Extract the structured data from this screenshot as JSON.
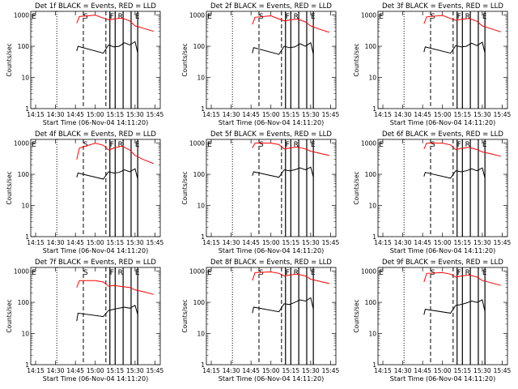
{
  "figure": {
    "background": "#ffffff",
    "colors": {
      "events": "#000000",
      "lld": "#ff0000",
      "axes": "#000000"
    }
  },
  "chart_data": [
    {
      "type": "line",
      "title": "Det 1f BLACK = Events, RED = LLD",
      "xlabel": "Start Time (06-Nov-04 14:11:20)",
      "ylabel": "Counts/sec",
      "xticks": [
        "14:15",
        "14:30",
        "14:45",
        "15:00",
        "15:15",
        "15:30",
        "15:45"
      ],
      "yticks": [
        "1",
        "10",
        "100",
        "1000"
      ],
      "ylim": [
        1,
        1000
      ],
      "yscale": "log",
      "markers": [
        "E",
        "S",
        "F",
        "R",
        "E"
      ],
      "series": [
        {
          "name": "Events",
          "color": "#000000",
          "x": [
            "14:46:00",
            "14:47:00",
            "15:06:00",
            "15:10:00",
            "15:14:00",
            "15:18:00",
            "15:22:00",
            "15:26:00",
            "15:30:00",
            "15:32:00"
          ],
          "y": [
            70,
            100,
            60,
            110,
            95,
            100,
            130,
            110,
            140,
            60
          ]
        },
        {
          "name": "LLD",
          "color": "#ff0000",
          "x": [
            "14:46:00",
            "14:48:00",
            "15:00:00",
            "15:06:00",
            "15:10:00",
            "15:14:00",
            "15:20:00",
            "15:26:00",
            "15:30:00",
            "15:36:00",
            "15:44:00"
          ],
          "y": [
            550,
            900,
            1000,
            800,
            700,
            750,
            800,
            650,
            450,
            380,
            300
          ]
        }
      ]
    },
    {
      "type": "line",
      "title": "Det 2f BLACK = Events, RED = LLD",
      "xlabel": "Start Time (06-Nov-04 14:11:20)",
      "ylabel": "Counts/sec",
      "xticks": [
        "14:15",
        "14:30",
        "14:45",
        "15:00",
        "15:15",
        "15:30",
        "15:45"
      ],
      "yticks": [
        "1",
        "10",
        "100",
        "1000"
      ],
      "ylim": [
        1,
        1000
      ],
      "yscale": "log",
      "markers": [
        "E",
        "S",
        "F",
        "R",
        "E"
      ],
      "series": [
        {
          "name": "Events",
          "color": "#000000",
          "x": [
            "14:46:00",
            "14:47:00",
            "15:06:00",
            "15:10:00",
            "15:14:00",
            "15:18:00",
            "15:22:00",
            "15:26:00",
            "15:30:00",
            "15:32:00"
          ],
          "y": [
            60,
            90,
            55,
            100,
            90,
            95,
            120,
            100,
            130,
            55
          ]
        },
        {
          "name": "LLD",
          "color": "#ff0000",
          "x": [
            "14:46:00",
            "14:48:00",
            "15:00:00",
            "15:06:00",
            "15:10:00",
            "15:14:00",
            "15:20:00",
            "15:26:00",
            "15:30:00",
            "15:36:00",
            "15:44:00"
          ],
          "y": [
            500,
            850,
            950,
            750,
            650,
            700,
            750,
            600,
            450,
            360,
            280
          ]
        }
      ]
    },
    {
      "type": "line",
      "title": "Det 3f BLACK = Events, RED = LLD",
      "xlabel": "Start Time (06-Nov-04 14:11:20)",
      "ylabel": "Counts/sec",
      "xticks": [
        "14:15",
        "14:30",
        "14:45",
        "15:00",
        "15:15",
        "15:30",
        "15:45"
      ],
      "yticks": [
        "1",
        "10",
        "100",
        "1000"
      ],
      "ylim": [
        1,
        1000
      ],
      "yscale": "log",
      "markers": [
        "E",
        "S",
        "F",
        "R",
        "E"
      ],
      "series": [
        {
          "name": "Events",
          "color": "#000000",
          "x": [
            "14:46:00",
            "14:47:00",
            "15:06:00",
            "15:10:00",
            "15:14:00",
            "15:18:00",
            "15:22:00",
            "15:26:00",
            "15:30:00",
            "15:32:00"
          ],
          "y": [
            65,
            95,
            60,
            105,
            95,
            100,
            125,
            105,
            135,
            60
          ]
        },
        {
          "name": "LLD",
          "color": "#ff0000",
          "x": [
            "14:46:00",
            "14:48:00",
            "15:00:00",
            "15:06:00",
            "15:10:00",
            "15:14:00",
            "15:20:00",
            "15:26:00",
            "15:30:00",
            "15:36:00",
            "15:44:00"
          ],
          "y": [
            520,
            880,
            980,
            780,
            680,
            730,
            780,
            630,
            450,
            370,
            290
          ]
        }
      ]
    },
    {
      "type": "line",
      "title": "Det 4f BLACK = Events, RED = LLD",
      "xlabel": "Start Time (06-Nov-04 14:11:20)",
      "ylabel": "Counts/sec",
      "xticks": [
        "14:15",
        "14:30",
        "14:45",
        "15:00",
        "15:15",
        "15:30",
        "15:45"
      ],
      "yticks": [
        "1",
        "10",
        "100",
        "1000"
      ],
      "ylim": [
        1,
        1000
      ],
      "yscale": "log",
      "markers": [
        "E",
        "S",
        "F",
        "R",
        "E"
      ],
      "series": [
        {
          "name": "Events",
          "color": "#000000",
          "x": [
            "14:46:00",
            "14:47:00",
            "15:06:00",
            "15:10:00",
            "15:14:00",
            "15:18:00",
            "15:22:00",
            "15:26:00",
            "15:30:00",
            "15:32:00"
          ],
          "y": [
            80,
            110,
            70,
            120,
            110,
            115,
            140,
            120,
            150,
            70
          ]
        },
        {
          "name": "LLD",
          "color": "#ff0000",
          "x": [
            "14:46:00",
            "14:48:00",
            "15:00:00",
            "15:06:00",
            "15:10:00",
            "15:14:00",
            "15:20:00",
            "15:26:00",
            "15:30:00",
            "15:36:00",
            "15:44:00"
          ],
          "y": [
            300,
            700,
            1000,
            850,
            600,
            700,
            800,
            600,
            400,
            300,
            220
          ]
        }
      ]
    },
    {
      "type": "line",
      "title": "Det 5f BLACK = Events, RED = LLD",
      "xlabel": "Start Time (06-Nov-04 14:11:20)",
      "ylabel": "Counts/sec",
      "xticks": [
        "14:15",
        "14:30",
        "14:45",
        "15:00",
        "15:15",
        "15:30",
        "15:45"
      ],
      "yticks": [
        "1",
        "10",
        "100",
        "1000"
      ],
      "ylim": [
        1,
        1000
      ],
      "yscale": "log",
      "markers": [
        "E",
        "S",
        "F",
        "R",
        "E"
      ],
      "series": [
        {
          "name": "Events",
          "color": "#000000",
          "x": [
            "14:46:00",
            "14:47:00",
            "15:06:00",
            "15:10:00",
            "15:14:00",
            "15:18:00",
            "15:22:00",
            "15:26:00",
            "15:30:00",
            "15:32:00"
          ],
          "y": [
            90,
            120,
            80,
            140,
            130,
            140,
            160,
            140,
            170,
            80
          ]
        },
        {
          "name": "LLD",
          "color": "#ff0000",
          "x": [
            "14:46:00",
            "14:48:00",
            "15:00:00",
            "15:06:00",
            "15:10:00",
            "15:14:00",
            "15:20:00",
            "15:26:00",
            "15:30:00",
            "15:36:00",
            "15:44:00"
          ],
          "y": [
            700,
            1000,
            1000,
            900,
            650,
            700,
            750,
            650,
            550,
            480,
            400
          ]
        }
      ]
    },
    {
      "type": "line",
      "title": "Det 6f BLACK = Events, RED = LLD",
      "xlabel": "Start Time (06-Nov-04 14:11:20)",
      "ylabel": "Counts/sec",
      "xticks": [
        "14:15",
        "14:30",
        "14:45",
        "15:00",
        "15:15",
        "15:30",
        "15:45"
      ],
      "yticks": [
        "1",
        "10",
        "100",
        "1000"
      ],
      "ylim": [
        1,
        1000
      ],
      "yscale": "log",
      "markers": [
        "E",
        "S",
        "F",
        "R",
        "E"
      ],
      "series": [
        {
          "name": "Events",
          "color": "#000000",
          "x": [
            "14:46:00",
            "14:47:00",
            "15:06:00",
            "15:10:00",
            "15:14:00",
            "15:18:00",
            "15:22:00",
            "15:26:00",
            "15:30:00",
            "15:32:00"
          ],
          "y": [
            85,
            115,
            75,
            130,
            120,
            130,
            150,
            130,
            160,
            75
          ]
        },
        {
          "name": "LLD",
          "color": "#ff0000",
          "x": [
            "14:46:00",
            "14:48:00",
            "15:00:00",
            "15:06:00",
            "15:10:00",
            "15:14:00",
            "15:20:00",
            "15:26:00",
            "15:30:00",
            "15:36:00",
            "15:44:00"
          ],
          "y": [
            650,
            1000,
            1000,
            880,
            620,
            680,
            730,
            620,
            520,
            460,
            380
          ]
        }
      ]
    },
    {
      "type": "line",
      "title": "Det 7f BLACK = Events, RED = LLD",
      "xlabel": "Start Time (06-Nov-04 14:11:20)",
      "ylabel": "Counts/sec",
      "xticks": [
        "14:15",
        "14:30",
        "14:45",
        "15:00",
        "15:15",
        "15:30",
        "15:45"
      ],
      "yticks": [
        "1",
        "10",
        "100",
        "1000"
      ],
      "ylim": [
        1,
        1000
      ],
      "yscale": "log",
      "markers": [
        "E",
        "S",
        "F",
        "R",
        "E"
      ],
      "series": [
        {
          "name": "Events",
          "color": "#000000",
          "x": [
            "14:46:00",
            "14:47:00",
            "15:06:00",
            "15:10:00",
            "15:14:00",
            "15:18:00",
            "15:22:00",
            "15:26:00",
            "15:30:00",
            "15:32:00"
          ],
          "y": [
            25,
            45,
            35,
            55,
            60,
            65,
            70,
            65,
            80,
            40
          ]
        },
        {
          "name": "LLD",
          "color": "#ff0000",
          "x": [
            "14:46:00",
            "14:48:00",
            "15:00:00",
            "15:06:00",
            "15:10:00",
            "15:14:00",
            "15:20:00",
            "15:26:00",
            "15:30:00",
            "15:36:00",
            "15:44:00"
          ],
          "y": [
            300,
            500,
            500,
            450,
            330,
            350,
            320,
            300,
            250,
            220,
            180
          ]
        }
      ]
    },
    {
      "type": "line",
      "title": "Det 8f BLACK = Events, RED = LLD",
      "xlabel": "Start Time (06-Nov-04 14:11:20)",
      "ylabel": "Counts/sec",
      "xticks": [
        "14:15",
        "14:30",
        "14:45",
        "15:00",
        "15:15",
        "15:30",
        "15:45"
      ],
      "yticks": [
        "1",
        "10",
        "100",
        "1000"
      ],
      "ylim": [
        1,
        1000
      ],
      "yscale": "log",
      "markers": [
        "E",
        "S",
        "F",
        "R",
        "E"
      ],
      "series": [
        {
          "name": "Events",
          "color": "#000000",
          "x": [
            "14:46:00",
            "14:47:00",
            "15:06:00",
            "15:10:00",
            "15:14:00",
            "15:18:00",
            "15:22:00",
            "15:26:00",
            "15:30:00",
            "15:32:00"
          ],
          "y": [
            45,
            70,
            50,
            90,
            85,
            100,
            120,
            110,
            140,
            60
          ]
        },
        {
          "name": "LLD",
          "color": "#ff0000",
          "x": [
            "14:46:00",
            "14:48:00",
            "15:00:00",
            "15:06:00",
            "15:10:00",
            "15:14:00",
            "15:20:00",
            "15:26:00",
            "15:30:00",
            "15:36:00",
            "15:44:00"
          ],
          "y": [
            500,
            900,
            950,
            850,
            700,
            750,
            800,
            700,
            550,
            480,
            400
          ]
        }
      ]
    },
    {
      "type": "line",
      "title": "Det 9f BLACK = Events, RED = LLD",
      "xlabel": "Start Time (06-Nov-04 14:11:20)",
      "ylabel": "Counts/sec",
      "xticks": [
        "14:15",
        "14:30",
        "14:45",
        "15:00",
        "15:15",
        "15:30",
        "15:45"
      ],
      "yticks": [
        "1",
        "10",
        "100",
        "1000"
      ],
      "ylim": [
        1,
        1000
      ],
      "yscale": "log",
      "markers": [
        "E",
        "S",
        "F",
        "R",
        "E"
      ],
      "series": [
        {
          "name": "Events",
          "color": "#000000",
          "x": [
            "14:46:00",
            "14:47:00",
            "15:06:00",
            "15:10:00",
            "15:14:00",
            "15:18:00",
            "15:22:00",
            "15:26:00",
            "15:30:00",
            "15:32:00"
          ],
          "y": [
            40,
            60,
            45,
            80,
            85,
            95,
            110,
            100,
            120,
            50
          ]
        },
        {
          "name": "LLD",
          "color": "#ff0000",
          "x": [
            "14:46:00",
            "14:48:00",
            "15:00:00",
            "15:06:00",
            "15:10:00",
            "15:14:00",
            "15:20:00",
            "15:26:00",
            "15:30:00",
            "15:36:00",
            "15:44:00"
          ],
          "y": [
            450,
            850,
            900,
            800,
            650,
            700,
            750,
            650,
            500,
            430,
            350
          ]
        }
      ]
    }
  ]
}
